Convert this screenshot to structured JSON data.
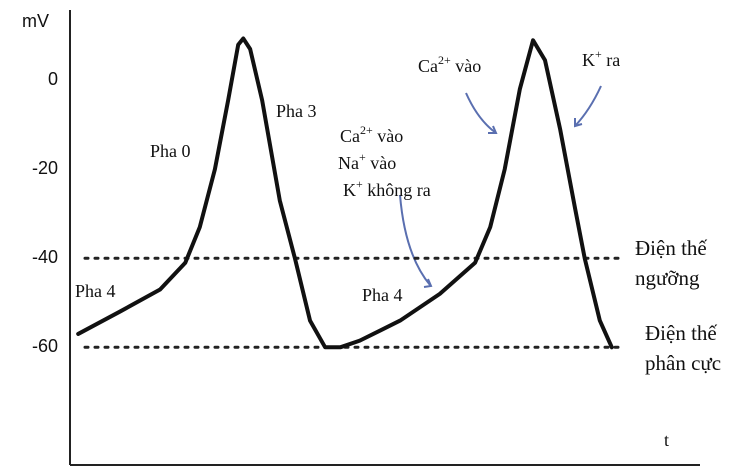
{
  "chart_data": {
    "type": "line",
    "ylabel": "mV",
    "xlabel": "t",
    "ylim": [
      -86,
      14
    ],
    "yticks": [
      0,
      -20,
      -40,
      -60
    ],
    "xlim": [
      0,
      100
    ],
    "series": [
      {
        "color": "#111111",
        "x": [
          1.3,
          7.9,
          14.3,
          18.3,
          20.6,
          23,
          25.1,
          26.7,
          27.5,
          28.6,
          30.5,
          33.3,
          35.7,
          38.1,
          40.5,
          42.9,
          46,
          52.4,
          58.7,
          64.3,
          66.7,
          69,
          71.4,
          73.5,
          75.4,
          77.8,
          80.2,
          81.7,
          84.1,
          86
        ],
        "values": [
          -57,
          -52,
          -47,
          -41,
          -33,
          -20,
          -4.5,
          8,
          9.4,
          7,
          -4.5,
          -27,
          -40,
          -54,
          -60,
          -60,
          -58.5,
          -54,
          -48,
          -41,
          -33,
          -20,
          -2,
          9,
          4.5,
          -11,
          -29,
          -40,
          -54,
          -60
        ]
      }
    ],
    "reference_lines": [
      {
        "value": -40,
        "label": [
          "Điện thế",
          "ngưỡng"
        ]
      },
      {
        "value": -60,
        "label": [
          "Điện thế",
          "phân cực"
        ]
      }
    ],
    "annotations": [
      {
        "parts": [
          "Pha 0"
        ]
      },
      {
        "parts": [
          "Pha 3"
        ]
      },
      {
        "parts": [
          "Pha 4"
        ]
      },
      {
        "parts": [
          "Pha 4"
        ]
      },
      {
        "parts": [
          "Ca",
          "2+",
          " vào"
        ]
      },
      {
        "parts": [
          "Na",
          "+",
          "  vào"
        ]
      },
      {
        "parts": [
          "K",
          "+",
          " không ra"
        ]
      },
      {
        "parts": [
          "Ca",
          "2+",
          " vào"
        ]
      },
      {
        "parts": [
          "K",
          "+",
          " ra"
        ]
      }
    ]
  }
}
